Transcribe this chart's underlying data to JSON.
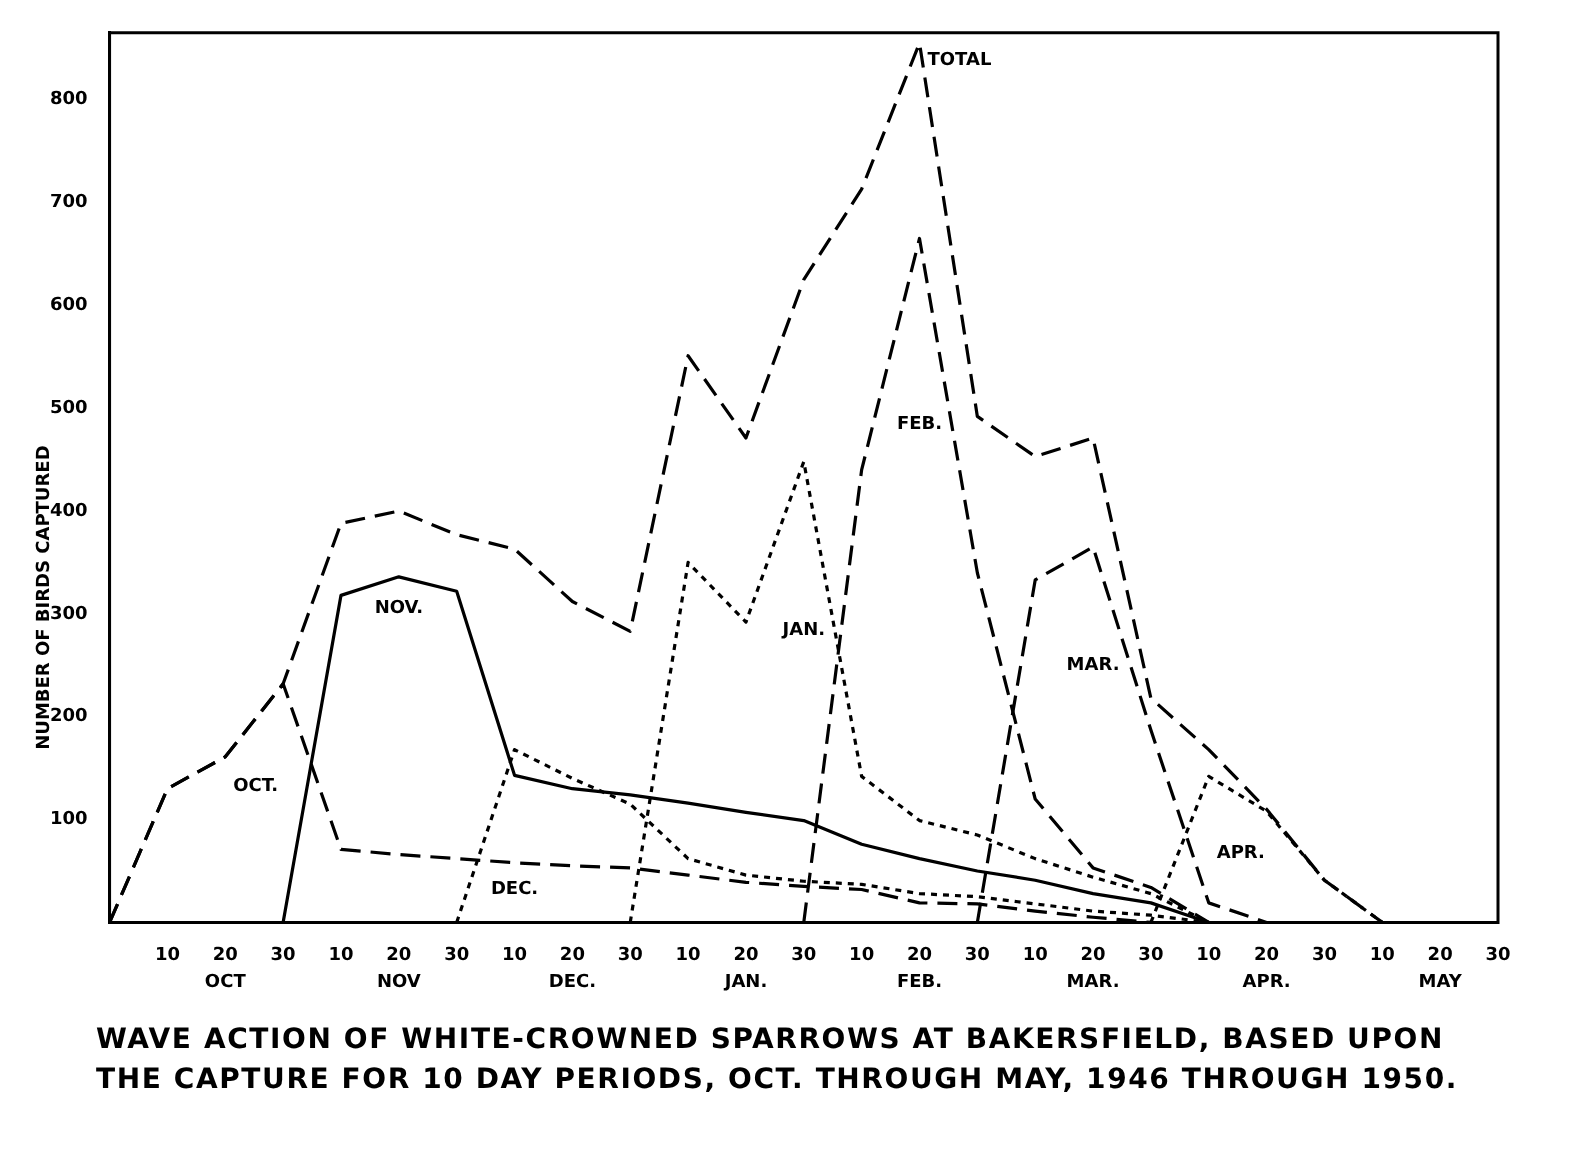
{
  "chart_data": {
    "type": "line",
    "title": "WAVE ACTION OF WHITE-CROWNED SPARROWS AT BAKERSFIELD, BASED UPON THE CAPTURE FOR 10 DAY PERIODS, OCT. THROUGH MAY, 1946 THROUGH 1950.",
    "ylabel": "NUMBER OF BIRDS CAPTURED",
    "categories": [
      null,
      "10",
      "20",
      "30",
      "10",
      "20",
      "30",
      "10",
      "20",
      "30",
      "10",
      "20",
      "30",
      "10",
      "20",
      "30",
      "10",
      "20",
      "30",
      "10",
      "20",
      "30",
      "10",
      "20",
      "30"
    ],
    "series": [
      {
        "name": "OCT.",
        "color": "#000000",
        "line_style": "dashed",
        "values": [
          0,
          130,
          161,
          232,
          71,
          66,
          62,
          58,
          55,
          53,
          46,
          39,
          35,
          32,
          19,
          18,
          11,
          5,
          0,
          null,
          null,
          null,
          null,
          null,
          null
        ]
      },
      {
        "name": "NOV.",
        "color": "#000000",
        "line_style": "solid",
        "values": [
          null,
          null,
          null,
          0,
          318,
          336,
          322,
          143,
          130,
          124,
          116,
          107,
          99,
          76,
          62,
          50,
          41,
          28,
          19,
          0,
          null,
          null,
          null,
          null,
          null
        ]
      },
      {
        "name": "DEC.",
        "color": "#000000",
        "line_style": "dotted",
        "values": [
          null,
          null,
          null,
          null,
          null,
          null,
          0,
          168,
          140,
          115,
          62,
          46,
          40,
          37,
          28,
          25,
          18,
          11,
          7,
          0,
          null,
          null,
          null,
          null,
          null
        ]
      },
      {
        "name": "JAN.",
        "color": "#000000",
        "line_style": "dotted",
        "values": [
          null,
          null,
          null,
          null,
          null,
          null,
          null,
          null,
          null,
          0,
          350,
          292,
          448,
          142,
          99,
          85,
          62,
          44,
          28,
          0,
          null,
          null,
          null,
          null,
          null
        ]
      },
      {
        "name": "FEB.",
        "color": "#000000",
        "line_style": "dashed",
        "values": [
          null,
          null,
          null,
          null,
          null,
          null,
          null,
          null,
          null,
          null,
          null,
          null,
          0,
          440,
          665,
          340,
          120,
          53,
          34,
          0,
          null,
          null,
          null,
          null,
          null
        ]
      },
      {
        "name": "MAR.",
        "color": "#000000",
        "line_style": "dashed",
        "values": [
          null,
          null,
          null,
          null,
          null,
          null,
          null,
          null,
          null,
          null,
          null,
          null,
          null,
          null,
          null,
          0,
          333,
          365,
          187,
          19,
          0,
          null,
          null,
          null,
          null
        ]
      },
      {
        "name": "APR.",
        "color": "#000000",
        "line_style": "dotted",
        "values": [
          null,
          null,
          null,
          null,
          null,
          null,
          null,
          null,
          null,
          null,
          null,
          null,
          null,
          null,
          null,
          null,
          null,
          null,
          0,
          142,
          108,
          41,
          0,
          null,
          null
        ]
      },
      {
        "name": "TOTAL",
        "color": "#000000",
        "line_style": "dashed",
        "values": [
          0,
          130,
          161,
          232,
          388,
          400,
          377,
          363,
          312,
          283,
          551,
          471,
          625,
          713,
          855,
          492,
          453,
          471,
          218,
          168,
          110,
          41,
          0,
          null,
          null
        ]
      }
    ],
    "ylim": [
      0,
      865
    ],
    "yticks": [
      100,
      200,
      300,
      400,
      500,
      600,
      700,
      800
    ],
    "grid": false,
    "legend": false,
    "marker": "none",
    "annotations": [
      "OCT",
      "NOV",
      "DEC.",
      "JAN.",
      "FEB.",
      "MAR.",
      "APR.",
      "MAY"
    ]
  }
}
